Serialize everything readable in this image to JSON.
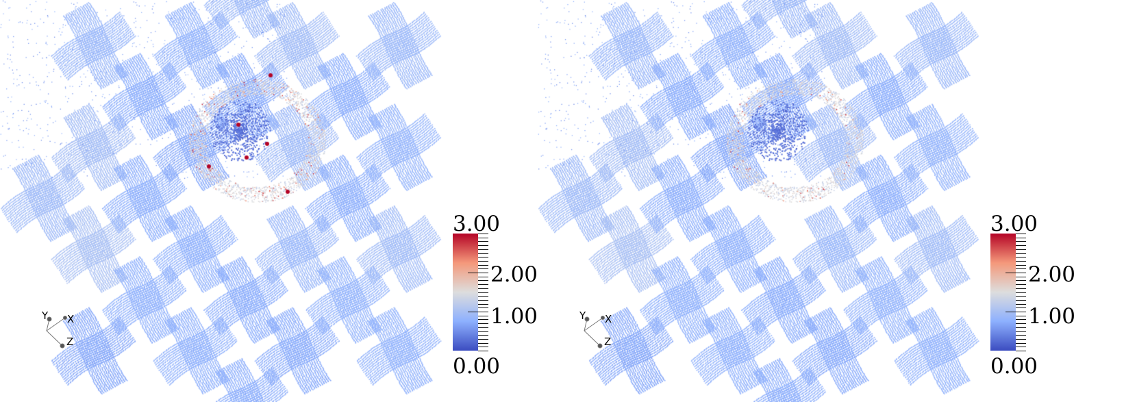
{
  "panels": [
    {
      "colorbar": {
        "max_label": "3.00",
        "labels": [
          "2.00",
          "1.00"
        ],
        "min_label": "0.00",
        "range": [
          0,
          3
        ]
      },
      "hotspots": "strong"
    },
    {
      "colorbar": {
        "max_label": "3.00",
        "labels": [
          "2.00",
          "1.00"
        ],
        "min_label": "0.00",
        "range": [
          0,
          3
        ]
      },
      "hotspots": "weak"
    }
  ],
  "orientation_axes": {
    "x": "X",
    "y": "Y",
    "z": "Z"
  },
  "colormap": [
    "#3b4cc0",
    "#8db0fe",
    "#dddddd",
    "#f4987a",
    "#b40426"
  ]
}
